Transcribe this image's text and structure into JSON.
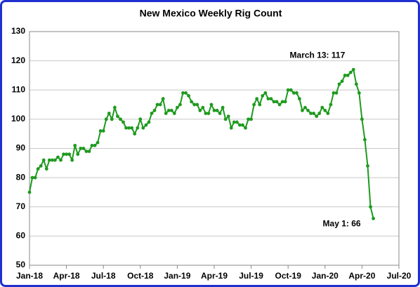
{
  "chart_data": {
    "type": "line",
    "title": "New Mexico Weekly Rig Count",
    "x": [
      0,
      1,
      2,
      3,
      4,
      5,
      6,
      7,
      8,
      9,
      10,
      11,
      12,
      13,
      14,
      15,
      16,
      17,
      18,
      19,
      20,
      21,
      22,
      23,
      24,
      25,
      26,
      27,
      28,
      29,
      30,
      31,
      32,
      33,
      34,
      35,
      36,
      37,
      38,
      39,
      40,
      41,
      42,
      43,
      44,
      45,
      46,
      47,
      48,
      49,
      50,
      51,
      52,
      53,
      54,
      55,
      56,
      57,
      58,
      59,
      60,
      61,
      62,
      63,
      64,
      65,
      66,
      67,
      68,
      69,
      70,
      71,
      72,
      73,
      74,
      75,
      76,
      77,
      78,
      79,
      80,
      81,
      82,
      83,
      84,
      85,
      86,
      87,
      88,
      89,
      90,
      91,
      92,
      93,
      94,
      95,
      96,
      97,
      98,
      99,
      100,
      101,
      102,
      103,
      104,
      105,
      106,
      107,
      108,
      109,
      110,
      111,
      112,
      113,
      114,
      115,
      116,
      117,
      118,
      119,
      120,
      121
    ],
    "series": [
      {
        "name": "New Mexico",
        "color": "#1e9a1e",
        "values": [
          75,
          80,
          80,
          83,
          84,
          86,
          83,
          86,
          86,
          86,
          87,
          86,
          88,
          88,
          88,
          86,
          91,
          88,
          90,
          90,
          89,
          89,
          91,
          91,
          92,
          96,
          96,
          100,
          102,
          100,
          104,
          101,
          100,
          99,
          97,
          97,
          97,
          95,
          97,
          100,
          97,
          98,
          99,
          102,
          103,
          105,
          105,
          107,
          102,
          103,
          103,
          102,
          104,
          105,
          109,
          109,
          108,
          106,
          105,
          105,
          103,
          104,
          102,
          102,
          105,
          103,
          103,
          102,
          104,
          100,
          101,
          97,
          99,
          99,
          98,
          98,
          97,
          100,
          100,
          105,
          107,
          105,
          108,
          109,
          107,
          107,
          106,
          106,
          105,
          106,
          106,
          110,
          110,
          109,
          109,
          107,
          103,
          104,
          103,
          102,
          102,
          101,
          102,
          104,
          103,
          102,
          105,
          109,
          109,
          112,
          113,
          115,
          115,
          116,
          117,
          112,
          109,
          100,
          93,
          84,
          70,
          66
        ]
      }
    ],
    "xlim": [
      0,
      130
    ],
    "xticks": [
      {
        "value": 0,
        "label": "Jan-18"
      },
      {
        "value": 13,
        "label": "Apr-18"
      },
      {
        "value": 26,
        "label": "Jul-18"
      },
      {
        "value": 39,
        "label": "Oct-18"
      },
      {
        "value": 52,
        "label": "Jan-19"
      },
      {
        "value": 65,
        "label": "Apr-19"
      },
      {
        "value": 78,
        "label": "Jul-19"
      },
      {
        "value": 91,
        "label": "Oct-19"
      },
      {
        "value": 104,
        "label": "Jan-20"
      },
      {
        "value": 117,
        "label": "Apr-20"
      },
      {
        "value": 130,
        "label": "Jul-20"
      }
    ],
    "ylim": [
      50,
      130
    ],
    "yticks": [
      50,
      60,
      70,
      80,
      90,
      100,
      110,
      120,
      130
    ],
    "grid": true,
    "annotations": [
      {
        "text": "March 13: 117",
        "x": 114,
        "y": 117
      },
      {
        "text": "May 1: 66",
        "x": 121,
        "y": 66
      }
    ]
  }
}
